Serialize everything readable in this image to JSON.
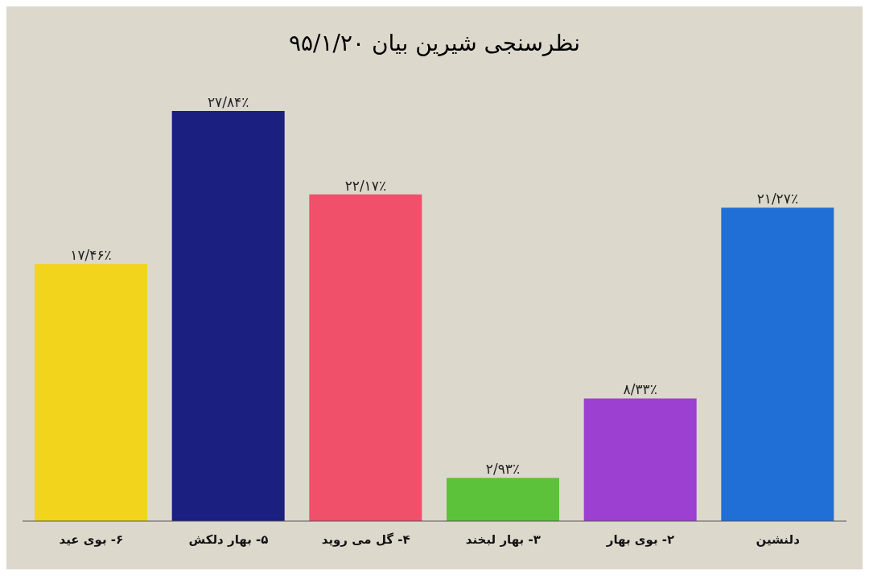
{
  "chart_data": {
    "type": "bar",
    "title": "نظرسنجی شیرین بیان ۹۵/۱/۲۰",
    "categories": [
      "۶- بوی عید",
      "۵- بهار دلکش",
      "۴- گل می روید",
      "۳- بهار لبخند",
      "۲- بوی بهار",
      "دلنشین"
    ],
    "values": [
      17.46,
      27.84,
      22.17,
      2.93,
      8.33,
      21.27
    ],
    "colors": [
      "#f2d41c",
      "#1a1f80",
      "#f0506a",
      "#5cc23a",
      "#9b40d0",
      "#1f6fd6"
    ],
    "value_labels": [
      "۱۷/۴۶٪",
      "۲۷/۸۴٪",
      "۲۲/۱۷٪",
      "۲/۹۳٪",
      "۸/۳۳٪",
      "۲۱/۲۷٪"
    ],
    "legend": false,
    "grid": false
  }
}
